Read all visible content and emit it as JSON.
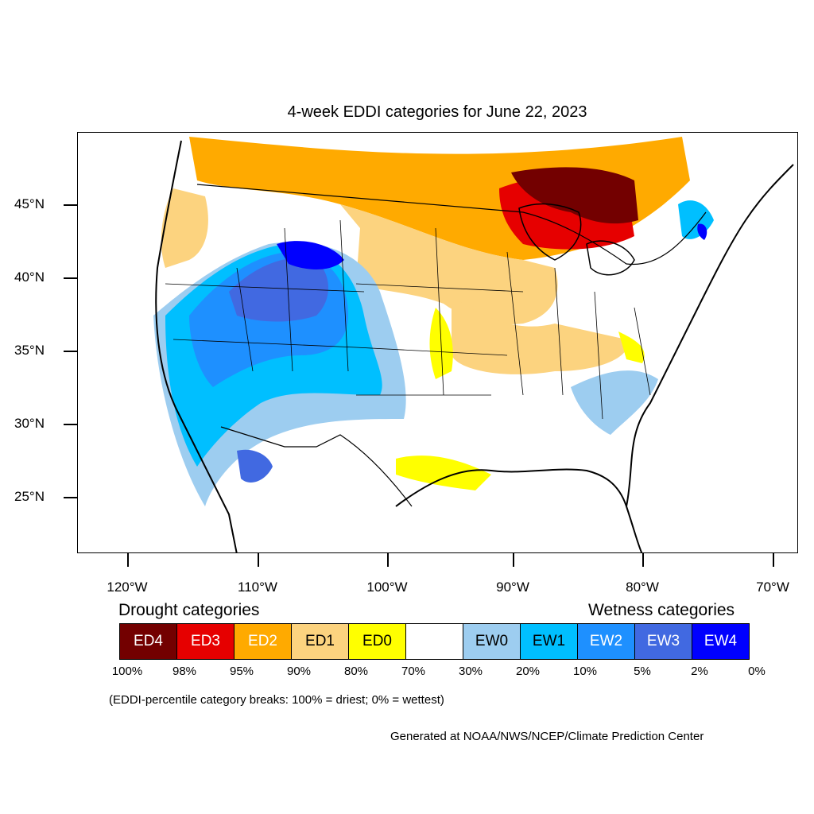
{
  "title": "4-week EDDI categories for June 22, 2023",
  "lat_labels": [
    "45°N",
    "40°N",
    "35°N",
    "30°N",
    "25°N"
  ],
  "lon_labels": [
    "120°W",
    "110°W",
    "100°W",
    "90°W",
    "80°W",
    "70°W"
  ],
  "legend": {
    "drought_heading": "Drought categories",
    "wetness_heading": "Wetness categories",
    "categories": [
      {
        "label": "ED4",
        "color": "#730000",
        "text_color": "#ffffff"
      },
      {
        "label": "ED3",
        "color": "#e60000",
        "text_color": "#ffffff"
      },
      {
        "label": "ED2",
        "color": "#ffaa00",
        "text_color": "#ffffff"
      },
      {
        "label": "ED1",
        "color": "#fcd37f",
        "text_color": "#000000"
      },
      {
        "label": "ED0",
        "color": "#ffff00",
        "text_color": "#000000"
      },
      {
        "label": "",
        "color": "#ffffff",
        "text_color": "#000000"
      },
      {
        "label": "EW0",
        "color": "#9dcdf0",
        "text_color": "#000000"
      },
      {
        "label": "EW1",
        "color": "#00bfff",
        "text_color": "#000000"
      },
      {
        "label": "EW2",
        "color": "#1e90ff",
        "text_color": "#ffffff"
      },
      {
        "label": "EW3",
        "color": "#4169e1",
        "text_color": "#ffffff"
      },
      {
        "label": "EW4",
        "color": "#0000ff",
        "text_color": "#ffffff"
      }
    ],
    "breaks": [
      "100%",
      "98%",
      "95%",
      "90%",
      "80%",
      "70%",
      "30%",
      "20%",
      "10%",
      "5%",
      "2%",
      "0%"
    ]
  },
  "note": "(EDDI-percentile category breaks: 100% = driest; 0% = wettest)",
  "credit": "Generated at NOAA/NWS/NCEP/Climate Prediction Center"
}
